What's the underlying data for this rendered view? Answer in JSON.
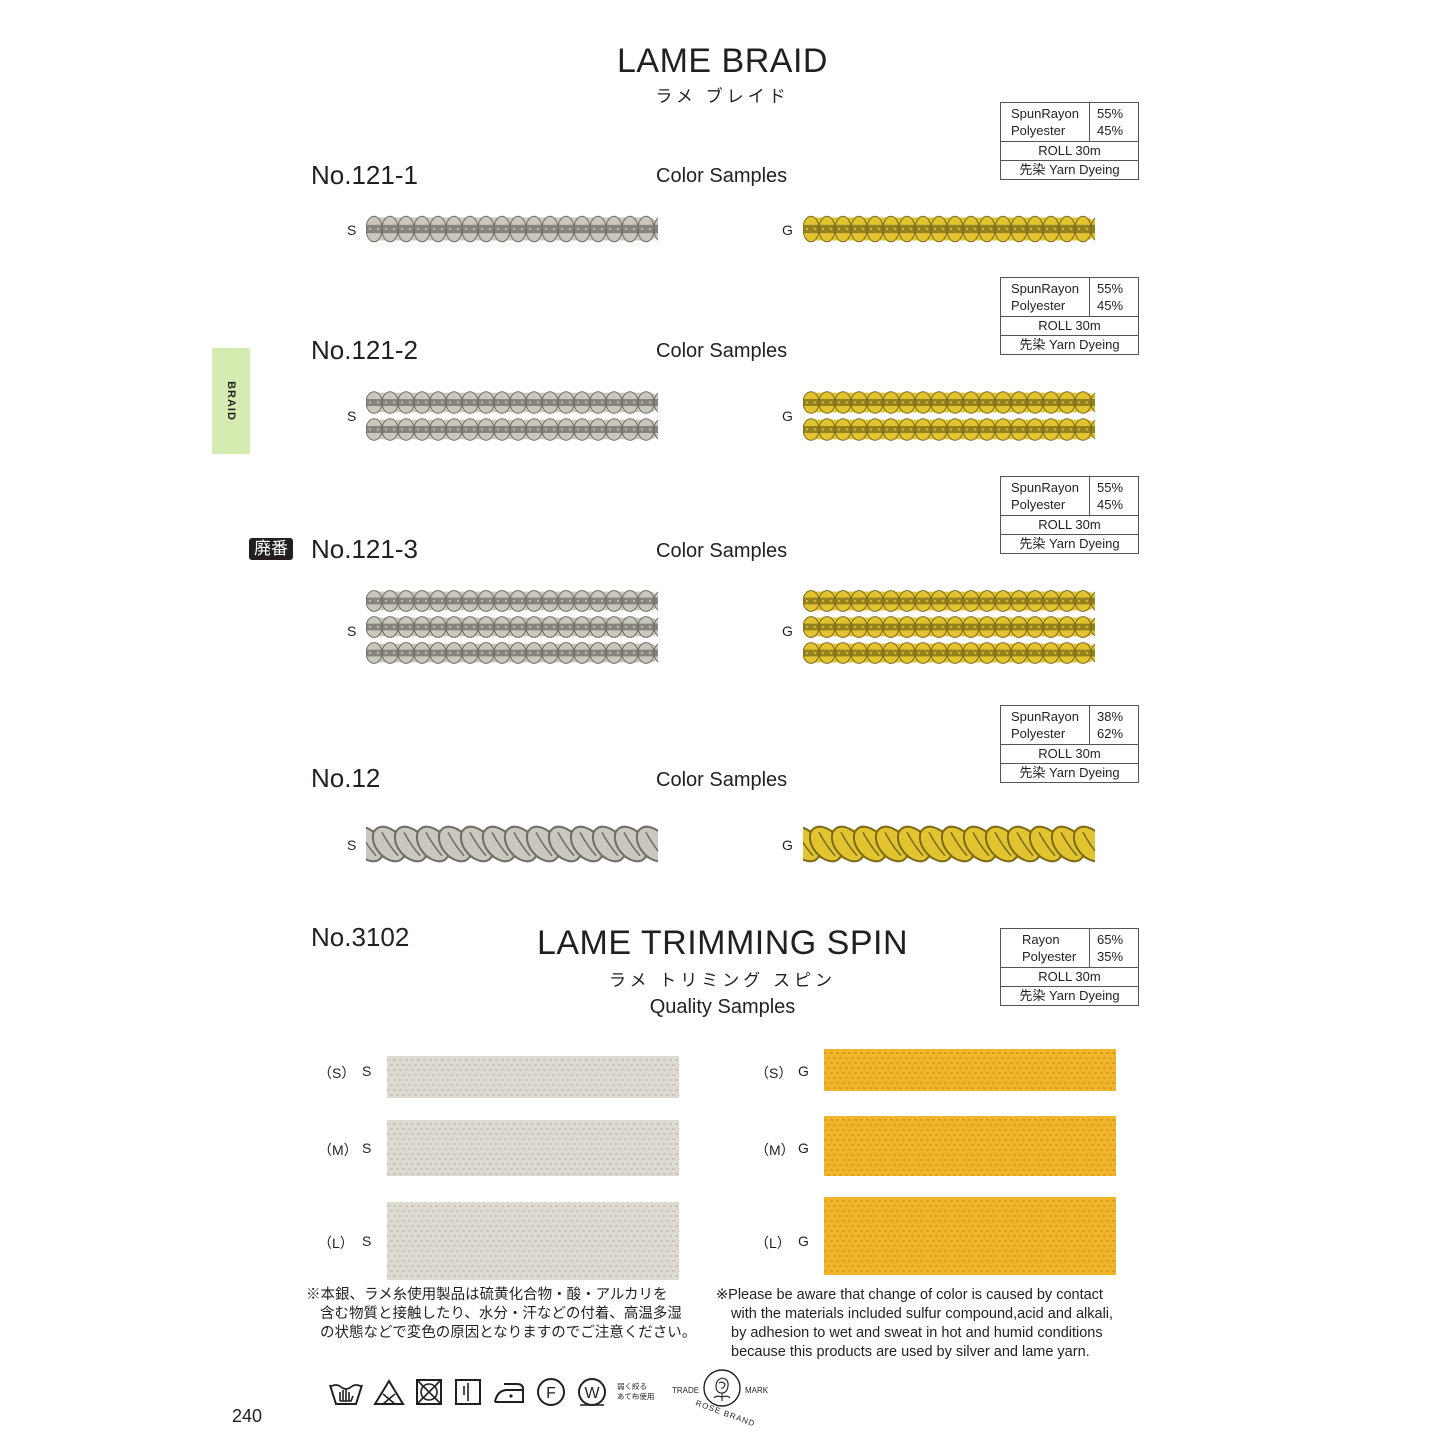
{
  "header": {
    "title": "LAME BRAID",
    "subtitle": "ラメ ブレイド"
  },
  "side_tab": {
    "label": "BRAID"
  },
  "discontinued_badge": "廃番",
  "products": [
    {
      "number": "No.121-1",
      "samples_label": "Color Samples",
      "spec": {
        "materials": [
          "SpunRayon",
          "Polyester"
        ],
        "percents": [
          "55%",
          "45%"
        ],
        "roll": "ROLL 30m",
        "dyeing": "先染  Yarn Dyeing"
      },
      "variants": [
        {
          "code": "S",
          "color": "silver"
        },
        {
          "code": "G",
          "color": "gold"
        }
      ]
    },
    {
      "number": "No.121-2",
      "samples_label": "Color Samples",
      "spec": {
        "materials": [
          "SpunRayon",
          "Polyester"
        ],
        "percents": [
          "55%",
          "45%"
        ],
        "roll": "ROLL 30m",
        "dyeing": "先染  Yarn Dyeing"
      },
      "variants": [
        {
          "code": "S",
          "color": "silver"
        },
        {
          "code": "G",
          "color": "gold"
        }
      ]
    },
    {
      "number": "No.121-3",
      "samples_label": "Color Samples",
      "spec": {
        "materials": [
          "SpunRayon",
          "Polyester"
        ],
        "percents": [
          "55%",
          "45%"
        ],
        "roll": "ROLL 30m",
        "dyeing": "先染  Yarn Dyeing"
      },
      "variants": [
        {
          "code": "S",
          "color": "silver"
        },
        {
          "code": "G",
          "color": "gold"
        }
      ]
    },
    {
      "number": "No.12",
      "samples_label": "Color Samples",
      "spec": {
        "materials": [
          "SpunRayon",
          "Polyester"
        ],
        "percents": [
          "38%",
          "62%"
        ],
        "roll": "ROLL 30m",
        "dyeing": "先染  Yarn Dyeing"
      },
      "variants": [
        {
          "code": "S",
          "color": "silver"
        },
        {
          "code": "G",
          "color": "gold"
        }
      ]
    }
  ],
  "trimming": {
    "number": "No.3102",
    "title": "LAME TRIMMING SPIN",
    "subtitle": "ラメ トリミング スピン",
    "samples_label": "Quality Samples",
    "spec": {
      "materials": [
        "Rayon",
        "Polyester"
      ],
      "percents": [
        "65%",
        "35%"
      ],
      "roll": "ROLL 30m",
      "dyeing": "先染  Yarn Dyeing"
    },
    "sizes": [
      {
        "size": "（S）",
        "silver_code": "S",
        "gold_code": "G"
      },
      {
        "size": "（M）",
        "silver_code": "S",
        "gold_code": "G"
      },
      {
        "size": "（L）",
        "silver_code": "S",
        "gold_code": "G"
      }
    ]
  },
  "notes": {
    "japanese": [
      "※本銀、ラメ糸使用製品は硫黄化合物・酸・アルカリを",
      "含む物質と接触したり、水分・汗などの付着、高温多湿",
      "の状態などで変色の原因となりますのでご注意ください。"
    ],
    "english": [
      "※Please be aware that change of color is caused by contact",
      "with the materials included sulfur compound,acid and alkali,",
      "by adhesion to wet and sweat in hot and humid conditions",
      "because this products are used by silver and lame yarn."
    ]
  },
  "care_icons": [
    "hand-wash-icon",
    "bleach-icon",
    "no-tumble-dry-icon",
    "drip-dry-icon",
    "iron-icon",
    "dry-clean-f-icon",
    "wet-clean-w-icon"
  ],
  "care_note": [
    "弱く絞る",
    "あて布使用"
  ],
  "trademark": {
    "left": "TRADE",
    "right": "MARK",
    "bottom": "ROSE BRAND"
  },
  "page_number": "240",
  "colors": {
    "silver": "#c9c7be",
    "silver_dark": "#6e6c64",
    "gold": "#e2c431",
    "gold_dark": "#7a6a1a",
    "tab_green": "#d5ecb0",
    "trim_silver": "#dedbd2",
    "trim_gold": "#f0b52a"
  }
}
